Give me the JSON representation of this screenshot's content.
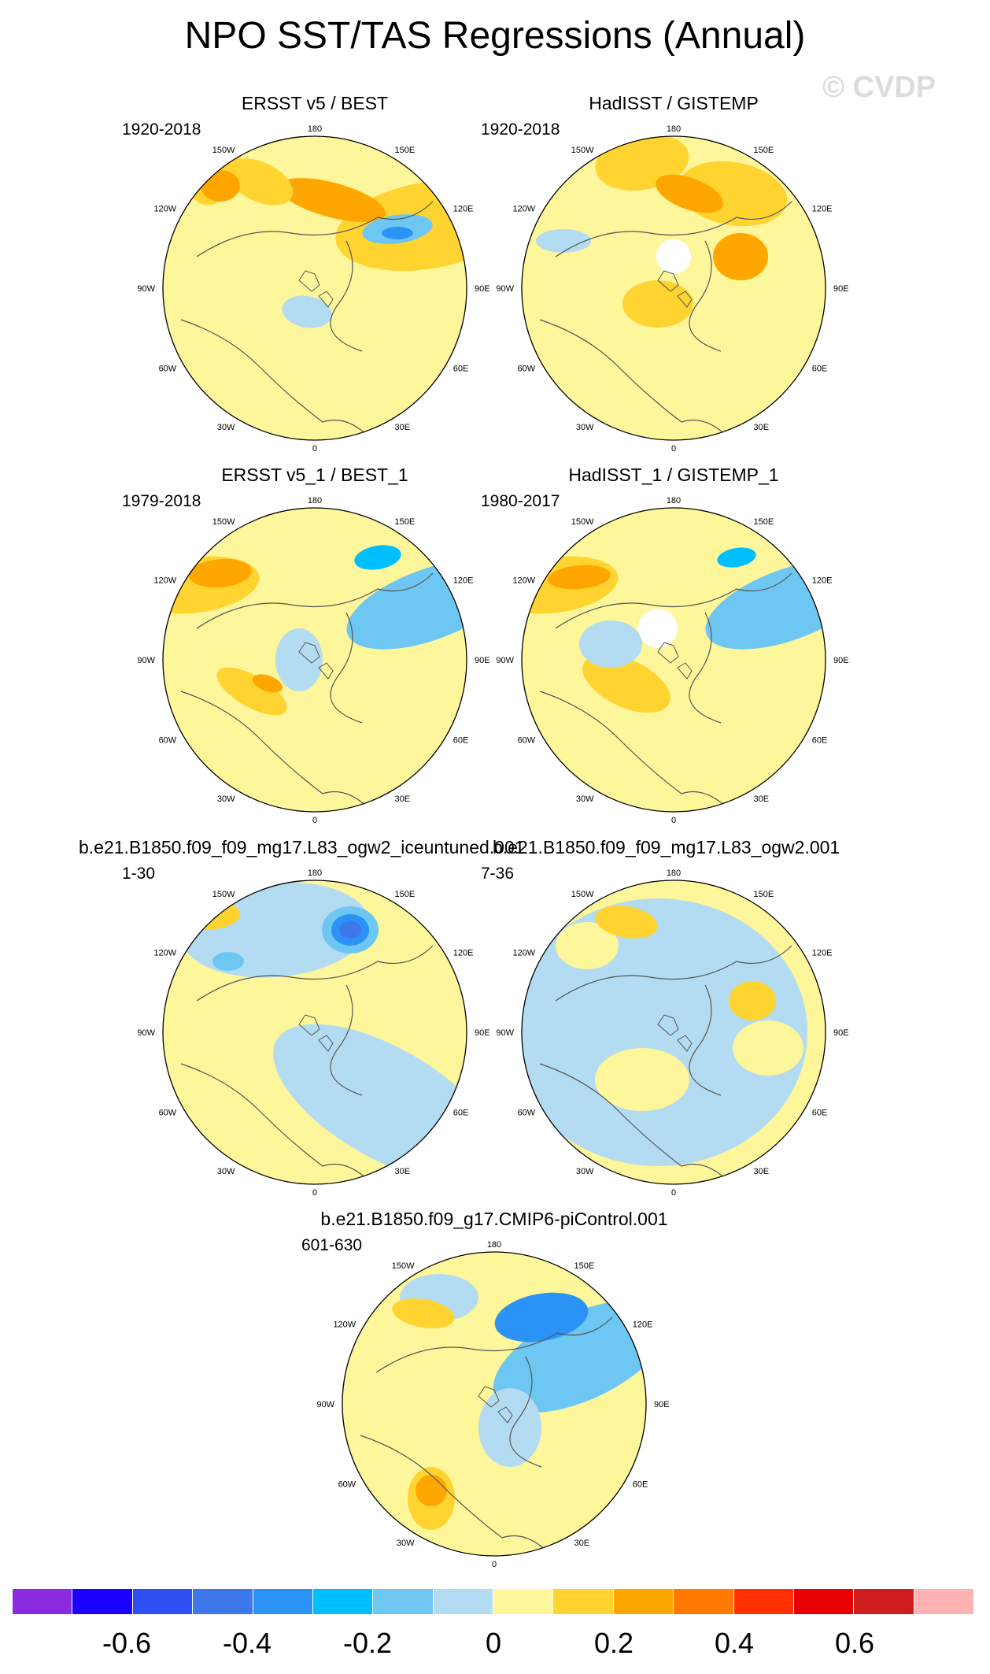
{
  "title": "NPO SST/TAS Regressions (Annual)",
  "watermark": "© CVDP",
  "lon_labels": [
    "180",
    "150E",
    "120E",
    "90E",
    "60E",
    "30E",
    "0",
    "30W",
    "60W",
    "90W",
    "120W",
    "150W"
  ],
  "panels": [
    {
      "title": "ERSST v5 / BEST",
      "years": "1920-2018"
    },
    {
      "title": "HadISST / GISTEMP",
      "years": "1920-2018"
    },
    {
      "title": "ERSST v5_1 / BEST_1",
      "years": "1979-2018"
    },
    {
      "title": "HadISST_1 / GISTEMP_1",
      "years": "1980-2017"
    },
    {
      "title": "b.e21.B1850.f09_f09_mg17.L83_ogw2_iceuntuned.001",
      "years": "1-30"
    },
    {
      "title": "b.e21.B1850.f09_f09_mg17.L83_ogw2.001",
      "years": "7-36"
    },
    {
      "title": "b.e21.B1850.f09_g17.CMIP6-piControl.001",
      "years": "601-630"
    }
  ],
  "colorbar": {
    "colors": [
      "#8a2be2",
      "#1a00ff",
      "#2d4ef0",
      "#3c78ea",
      "#2b93f5",
      "#00bfff",
      "#6ec6f2",
      "#b3dcf2",
      "#fdf69a",
      "#ffd431",
      "#ffa700",
      "#ff7800",
      "#ff3000",
      "#e80000",
      "#cf1c1c",
      "#ffb3b3"
    ],
    "labels": [
      "-0.6",
      "-0.4",
      "-0.2",
      "0",
      "0.2",
      "0.4",
      "0.6"
    ]
  }
}
